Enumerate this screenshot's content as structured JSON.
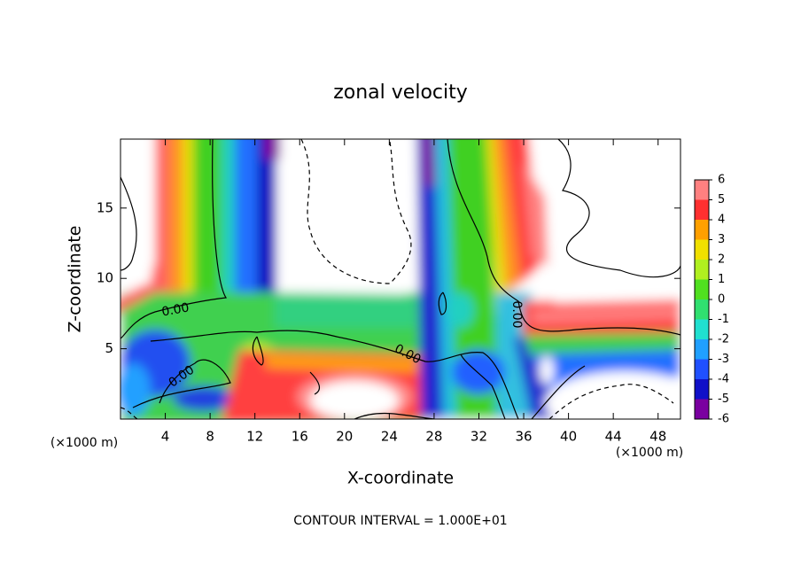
{
  "chart_data": {
    "type": "contour",
    "title": "zonal velocity",
    "x_label": "X-coordinate",
    "y_label": "Z-coordinate",
    "x_unit_label": "(×1000 m)",
    "y_unit_label": "(×1000 m)",
    "footnote": "CONTOUR INTERVAL = 1.000E+01",
    "xlim": [
      0,
      50
    ],
    "ylim": [
      0,
      19.9
    ],
    "xticks": [
      4,
      8,
      12,
      16,
      20,
      24,
      28,
      32,
      36,
      40,
      44,
      48
    ],
    "yticks": [
      5,
      10,
      15
    ],
    "contour_labels": [
      "0.00",
      "0.00",
      "0.00",
      "0.00"
    ],
    "colorbar": {
      "ticks": [
        -6,
        -5,
        -4,
        -3,
        -2,
        -1,
        0,
        1,
        2,
        3,
        4,
        5,
        6
      ],
      "colors": [
        "#7a00a0",
        "#1010c8",
        "#2050ff",
        "#20a0ff",
        "#20e0d0",
        "#30e070",
        "#50e020",
        "#b0f020",
        "#f0e000",
        "#ffa000",
        "#ff3030",
        "#ff8080"
      ]
    }
  }
}
